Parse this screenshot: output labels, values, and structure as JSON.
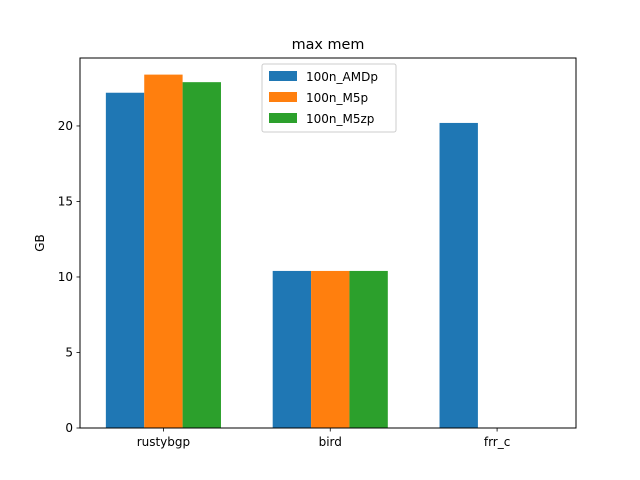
{
  "chart_data": {
    "type": "bar",
    "title": "max mem",
    "xlabel": "",
    "ylabel": "GB",
    "categories": [
      "rustybgp",
      "bird",
      "frr_c"
    ],
    "series": [
      {
        "name": "100n_AMDp",
        "color": "#1f77b4",
        "values": [
          22.2,
          10.4,
          20.2
        ]
      },
      {
        "name": "100n_M5p",
        "color": "#ff7f0e",
        "values": [
          23.4,
          10.4,
          0
        ]
      },
      {
        "name": "100n_M5zp",
        "color": "#2ca02c",
        "values": [
          22.9,
          10.4,
          0
        ]
      }
    ],
    "ylim": [
      0,
      24.5
    ],
    "yticks": [
      0,
      5,
      10,
      15,
      20
    ],
    "legend_position": "top-center",
    "grid": false
  }
}
